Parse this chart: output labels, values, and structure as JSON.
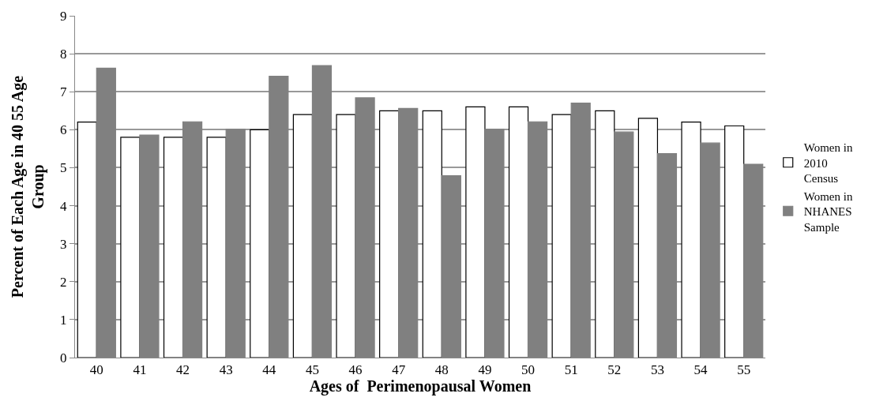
{
  "chart_data": {
    "type": "bar",
    "xlabel": "Ages of  Perimenopausal Women",
    "ylabel": "Percent of Each Age in 40 55 Age Group",
    "categories": [
      "40",
      "41",
      "42",
      "43",
      "44",
      "45",
      "46",
      "47",
      "48",
      "49",
      "50",
      "51",
      "52",
      "53",
      "54",
      "55"
    ],
    "series": [
      {
        "name": "Women in 2010 Census",
        "color": "#ffffff",
        "values": [
          6.2,
          5.8,
          5.8,
          5.8,
          6.0,
          6.4,
          6.4,
          6.5,
          6.5,
          6.6,
          6.6,
          6.4,
          6.5,
          6.3,
          6.2,
          6.1
        ]
      },
      {
        "name": "Women in NHANES Sample",
        "color": "#808080",
        "values": [
          7.62,
          5.86,
          6.21,
          6.01,
          7.41,
          7.69,
          6.84,
          6.56,
          4.79,
          6.01,
          6.21,
          6.7,
          5.94,
          5.37,
          5.65,
          5.09
        ]
      }
    ],
    "ylim": [
      0,
      9
    ],
    "yticks": [
      0,
      1,
      2,
      3,
      4,
      5,
      6,
      7,
      8,
      9
    ],
    "grid": "y",
    "legend": "right"
  }
}
